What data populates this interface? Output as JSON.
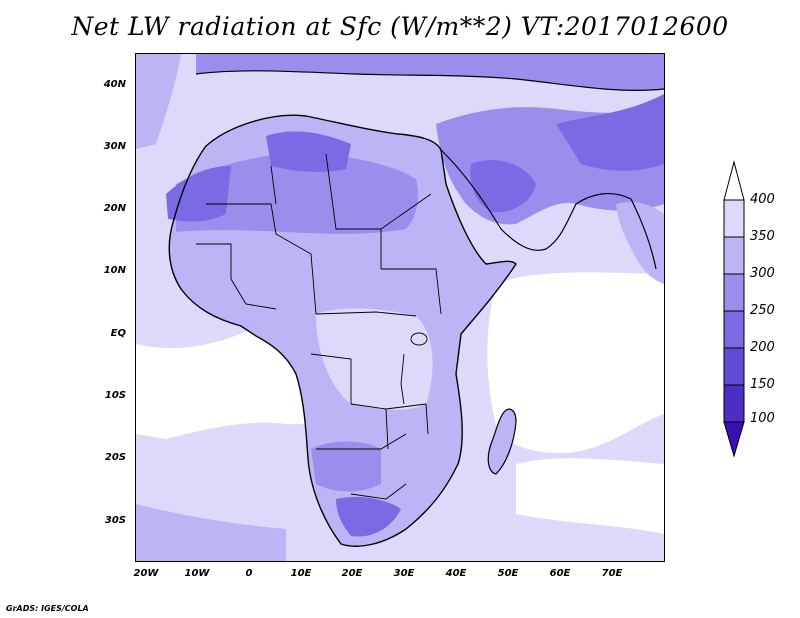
{
  "title": "Net LW radiation at Sfc (W/m**2) VT:2017012600",
  "credit": "GrADS: IGES/COLA",
  "map": {
    "lat_labels": [
      "40N",
      "30N",
      "20N",
      "10N",
      "EQ",
      "10S",
      "20S",
      "30S"
    ],
    "lon_labels": [
      "20W",
      "10W",
      "0",
      "10E",
      "20E",
      "30E",
      "40E",
      "50E",
      "60E",
      "70E"
    ]
  },
  "colorbar": {
    "labels": [
      "400",
      "350",
      "300",
      "250",
      "200",
      "150",
      "100"
    ],
    "colors": {
      "below_100": "#3a10b4",
      "100_150": "#4c2ec6",
      "150_200": "#5e4cd6",
      "200_250": "#7a6ae4",
      "250_300": "#9a8eed",
      "300_350": "#bcb5f5",
      "350_400": "#dcd9fb",
      "above_400": "#ffffff"
    }
  }
}
